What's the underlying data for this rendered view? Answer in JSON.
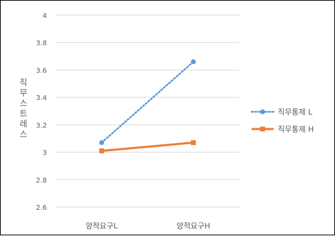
{
  "chart_data": {
    "type": "line",
    "title": "",
    "xlabel": "",
    "ylabel": "직무스트레스",
    "categories": [
      "양적요구L",
      "양적요구H"
    ],
    "ylim": [
      2.6,
      4
    ],
    "yticks": [
      2.6,
      2.8,
      3,
      3.2,
      3.4,
      3.6,
      3.8,
      4
    ],
    "ytick_labels": [
      "2.6",
      "2.8",
      "3",
      "3.2",
      "3.4",
      "3.6",
      "3.8",
      "4"
    ],
    "grid": true,
    "legend_position": "right",
    "series": [
      {
        "name": "직무통제 L",
        "values": [
          3.07,
          3.66
        ],
        "color": "#5B9BD5",
        "line_style": "dotted",
        "marker": "circle"
      },
      {
        "name": "직무통제 H",
        "values": [
          3.01,
          3.07
        ],
        "color": "#ED7D31",
        "line_style": "solid",
        "marker": "square"
      }
    ]
  }
}
